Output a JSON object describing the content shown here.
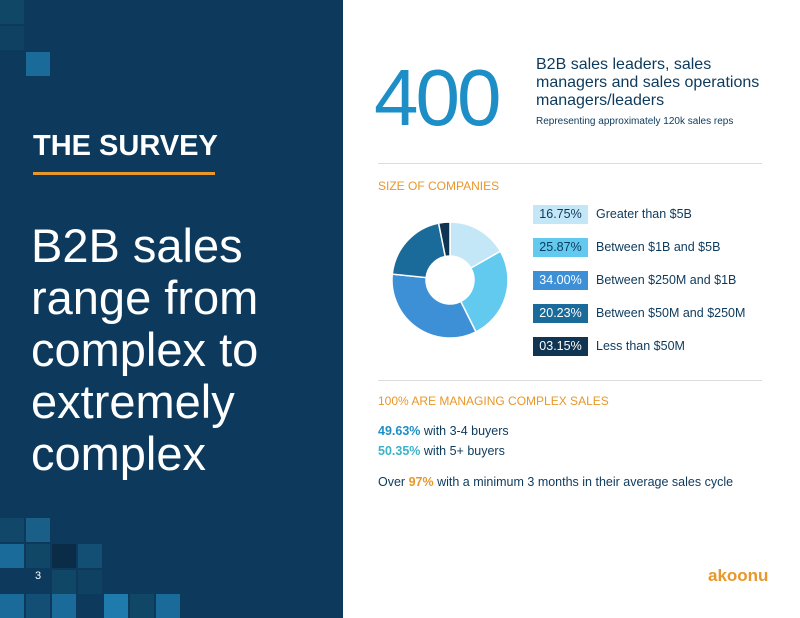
{
  "left": {
    "title": "THE SURVEY",
    "headline": "B2B sales range from complex to extremely complex",
    "page_number": "3"
  },
  "hero": {
    "number": "400",
    "description": "B2B sales leaders, sales managers and sales operations managers/leaders",
    "note": "Representing approximately 120k sales reps"
  },
  "chart_data": {
    "type": "donut",
    "title": "SIZE OF COMPANIES",
    "categories": [
      "Greater than $5B",
      "Between $1B and $5B",
      "Between $250M and $1B",
      "Between $50M and $250M",
      "Less than $50M"
    ],
    "values": [
      16.75,
      25.87,
      34.0,
      20.23,
      3.15
    ],
    "value_labels": [
      "16.75%",
      "25.87%",
      "34.00%",
      "20.23%",
      "03.15%"
    ],
    "colors": [
      "#c3e7f7",
      "#62c9ef",
      "#3d8fd6",
      "#1a6a9a",
      "#0f3552"
    ]
  },
  "complexity": {
    "title": "100% ARE MANAGING COMPLEX SALES",
    "lines": [
      {
        "highlight": "49.63%",
        "text": "with 3-4 buyers"
      },
      {
        "highlight": "50.35%",
        "text": "with 5+ buyers"
      }
    ],
    "cycle": {
      "prefix": "Over",
      "highlight": "97%",
      "text": "with a minimum 3 months in their average sales cycle"
    }
  },
  "logo": "akoonu"
}
